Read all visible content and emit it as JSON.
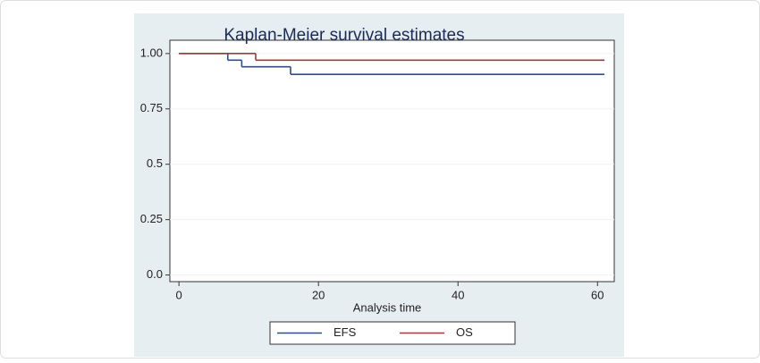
{
  "chart_data": {
    "type": "line",
    "step": "post",
    "title": "Kaplan-Meier survival estimates",
    "x_label": "Analysis time",
    "xlim": [
      -1.3,
      62.4
    ],
    "xticks": [
      0,
      20,
      40,
      60
    ],
    "ylim": [
      -0.03,
      1.06
    ],
    "yticks": [
      {
        "value": 0,
        "label": "0.0"
      },
      0.25,
      0.5,
      0.75,
      {
        "value": 1,
        "label": "1.00"
      }
    ],
    "grid": true,
    "series": [
      {
        "name": "EFS",
        "color": "#2f4f7f",
        "x": [
          0,
          7,
          9,
          16,
          61
        ],
        "values": [
          1,
          0.97,
          0.94,
          0.906,
          0.906
        ]
      },
      {
        "name": "OS",
        "color": "#a03a3a",
        "x": [
          0,
          11,
          61
        ],
        "values": [
          1,
          0.97,
          0.97
        ]
      }
    ]
  }
}
